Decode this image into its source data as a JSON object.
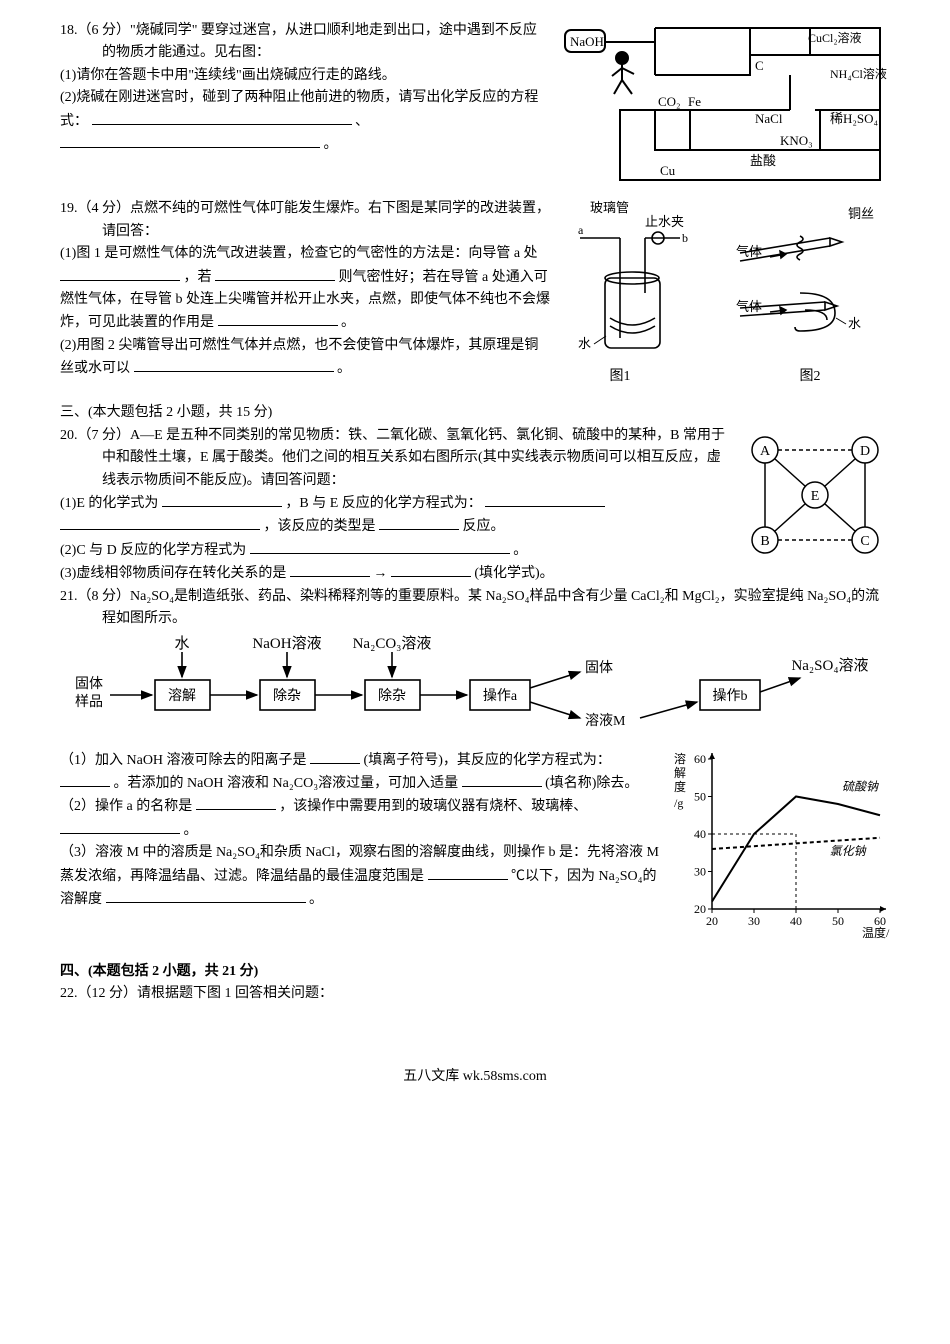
{
  "q18": {
    "heading": "18.（6 分）\"烧碱同学\" 要穿过迷宫，从进口顺利地走到出口，途中遇到不反应的物质才能通过。见右图：",
    "p1": "(1)请你在答题卡中用\"连续线\"画出烧碱应行走的路线。",
    "p2_a": "(2)烧碱在刚进迷宫时，碰到了两种阻止他前进的物质，请写出化学反应的方程式：",
    "p2_b": "、",
    "p2_c": "。",
    "maze_labels": {
      "naoh": "NaOH",
      "cucl2": "CuCl₂溶液",
      "nh4cl": "NH₄Cl溶液",
      "co2": "CO₂",
      "fe": "Fe",
      "c": "C",
      "nacl": "NaCl",
      "h2so4": "稀H₂SO₄",
      "cu": "Cu",
      "hcl": "盐酸",
      "kno3": "KNO₃"
    }
  },
  "q19": {
    "heading": "19.（4 分）点燃不纯的可燃性气体叮能发生爆炸。右下图是某同学的改进装置，请回答：",
    "p1_a": "(1)图 1 是可燃性气体的洗气改进装置，检查它的气密性的方法是：向导管 a 处",
    "p1_b": "，若",
    "p1_c": "则气密性好；若在导管 a 处通入可燃性气体，在导管 b 处连上尖嘴管并松开止水夹，点燃，即使气体不纯也不会爆炸，可见此装置的作用是",
    "p1_d": "。",
    "p2_a": "(2)用图 2 尖嘴管导出可燃性气体并点燃，也不会使管中气体爆炸，其原理是铜丝或水可以",
    "p2_b": "。",
    "fig1": {
      "caption": "图1",
      "labels": {
        "glass_tube": "玻璃管",
        "clamp": "止水夹",
        "a": "a",
        "b": "b",
        "water": "水"
      }
    },
    "fig2": {
      "caption": "图2",
      "labels": {
        "copper": "铜丝",
        "gas": "气体",
        "water": "水"
      }
    }
  },
  "sec3_heading": "三、(本大题包括 2 小题，共 15 分)",
  "q20": {
    "heading": "20.（7 分）A—E 是五种不同类别的常见物质：铁、二氧化碳、氢氧化钙、氯化铜、硫酸中的某种，B 常用于中和酸性土壤，E 属于酸类。他们之间的相互关系如右图所示(其中实线表示物质间可以相互反应，虚线表示物质间不能反应)。请回答问题：",
    "p1_a": "(1)E 的化学式为",
    "p1_b": "，B 与 E 反应的化学方程式为：",
    "p1_c": "，该反应的类型是",
    "p1_d": "反应。",
    "p2_a": "(2)C 与 D 反应的化学方程式为",
    "p2_b": "。",
    "p3_a": "(3)虚线相邻物质间存在转化关系的是",
    "p3_b": "→",
    "p3_c": "(填化学式)。",
    "nodes": {
      "A": "A",
      "B": "B",
      "C": "C",
      "D": "D",
      "E": "E"
    }
  },
  "q21": {
    "heading": "21.（8 分）Na₂SO₄是制造纸张、药品、染料稀释剂等的重要原料。某 Na₂SO₄样品中含有少量 CaCl₂和 MgCl₂，实验室提纯 Na₂SO₄的流程如图所示。",
    "flow": {
      "in": "固体\n样品",
      "water": "水",
      "naoh": "NaOH溶液",
      "na2co3": "Na₂CO₃溶液",
      "step1": "溶解",
      "step2": "除杂",
      "step3": "除杂",
      "stepa": "操作a",
      "solid": "固体",
      "solM": "溶液M",
      "stepb": "操作b",
      "out": "Na₂SO₄溶液"
    },
    "p1_a": "（1）加入 NaOH 溶液可除去的阳离子是",
    "p1_b": "(填离子符号)，其反应的化学方程式为：",
    "p1_c": "。若添加的 NaOH 溶液和 Na₂CO₃溶液过量，可加入适量",
    "p1_d": "(填名称)除去。",
    "p2_a": "（2）操作 a 的名称是",
    "p2_b": "，该操作中需要用到的玻璃仪器有烧杯、玻璃棒、",
    "p2_c": "。",
    "p3_a": "（3）溶液 M 中的溶质是 Na₂SO₄和杂质 NaCl，观察右图的溶解度曲线，则操作 b 是：先将溶液 M 蒸发浓缩，再降温结晶、过滤。降温结晶的最佳温度范围是",
    "p3_b": "℃以下，因为 Na₂SO₄的溶解度",
    "p3_c": "。",
    "chart": {
      "type": "line",
      "xlabel": "温度/℃",
      "ylabel": "溶解度/g",
      "xlim": [
        20,
        60
      ],
      "xtick_step": 10,
      "ylim": [
        20,
        60
      ],
      "ytick_step": 10,
      "axis_color": "#000000",
      "grid_color": "#000000",
      "background_color": "#ffffff",
      "series": [
        {
          "name": "硫酸钠",
          "color": "#000000",
          "line_width": 2,
          "dash": "none",
          "points_x": [
            20,
            30,
            40,
            50,
            60
          ],
          "points_y": [
            22,
            40,
            50,
            48,
            45
          ]
        },
        {
          "name": "氯化钠",
          "color": "#000000",
          "line_width": 2,
          "dash": "4 3",
          "points_x": [
            20,
            60
          ],
          "points_y": [
            36,
            39
          ]
        }
      ]
    }
  },
  "sec4_heading": "四、(本题包括 2 小题，共 21 分)",
  "q22_heading": "22.（12 分）请根据题下图 1 回答相关问题：",
  "footer": "五八文库 wk.58sms.com"
}
